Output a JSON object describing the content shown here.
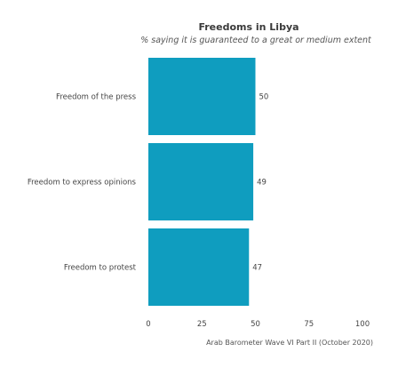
{
  "chart_data": {
    "type": "bar",
    "orientation": "horizontal",
    "title": "Freedoms in Libya",
    "subtitle": "% saying it is guaranteed to a great or medium extent",
    "categories": [
      "Freedom of the press",
      "Freedom to express opinions",
      "Freedom to protest"
    ],
    "values": [
      50,
      49,
      47
    ],
    "data_labels": [
      "50",
      "49",
      "47"
    ],
    "xlim": [
      0,
      100
    ],
    "x_ticks": [
      0,
      25,
      50,
      75,
      100
    ],
    "x_tick_labels": [
      "0",
      "25",
      "50",
      "75",
      "100"
    ],
    "grid": false,
    "legend": "none",
    "bar_color": "#0f9dbf"
  },
  "source": "Arab Barometer Wave VI Part II (October 2020)"
}
